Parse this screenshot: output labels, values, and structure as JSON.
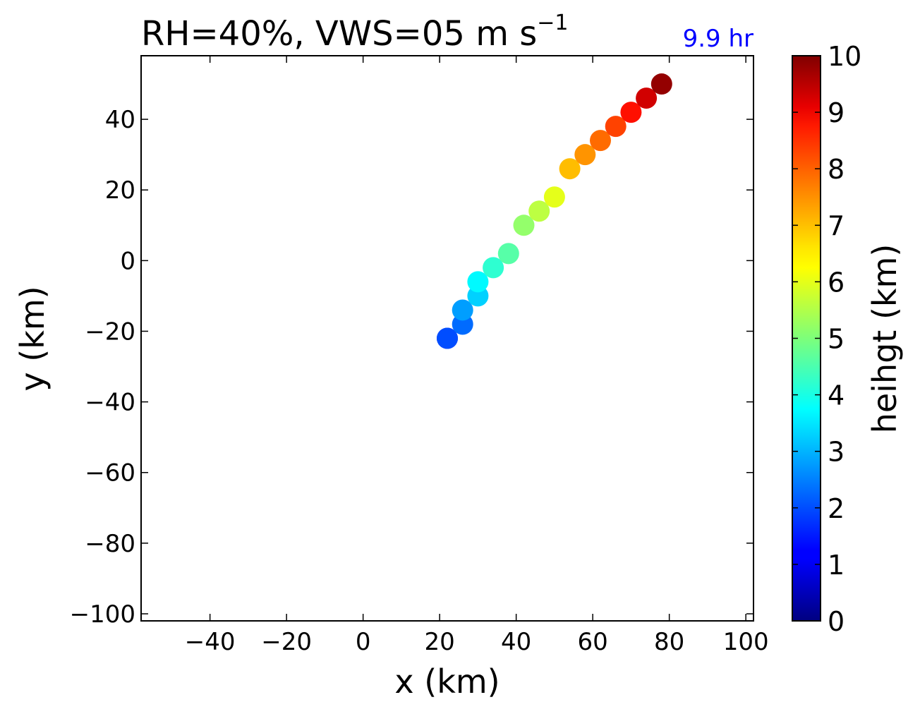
{
  "chart_data": {
    "type": "scatter",
    "title_main": "RH=40%, VWS=05 m s",
    "title_exp": "−1",
    "time_label": "9.9 hr",
    "time_label_color": "#0000ff",
    "xlabel": "x (km)",
    "ylabel": "y (km)",
    "xlim": [
      -58,
      102
    ],
    "ylim": [
      -102,
      58
    ],
    "xticks": [
      -40,
      -20,
      0,
      20,
      40,
      60,
      80,
      100
    ],
    "xtick_labels": [
      "−40",
      "−20",
      "0",
      "20",
      "40",
      "60",
      "80",
      "100"
    ],
    "yticks": [
      -100,
      -80,
      -60,
      -40,
      -20,
      0,
      20,
      40
    ],
    "ytick_labels": [
      "−100",
      "−80",
      "−60",
      "−40",
      "−20",
      "0",
      "20",
      "40"
    ],
    "colorbar": {
      "label": "heihgt (km)",
      "range": [
        0,
        10
      ],
      "ticks": [
        0,
        1,
        2,
        3,
        4,
        5,
        6,
        7,
        8,
        9,
        10
      ],
      "tick_labels": [
        "0",
        "1",
        "2",
        "3",
        "4",
        "5",
        "6",
        "7",
        "8",
        "9",
        "10"
      ],
      "colormap": "jet"
    },
    "points": [
      {
        "x": 22,
        "y": -22,
        "height": 1.5
      },
      {
        "x": 22,
        "y": -22,
        "height": 2.0
      },
      {
        "x": 26,
        "y": -18,
        "height": 2.3
      },
      {
        "x": 26,
        "y": -14,
        "height": 2.8
      },
      {
        "x": 30,
        "y": -10,
        "height": 3.3
      },
      {
        "x": 30,
        "y": -6,
        "height": 3.7
      },
      {
        "x": 34,
        "y": -2,
        "height": 4.2
      },
      {
        "x": 38,
        "y": 2,
        "height": 4.6
      },
      {
        "x": 42,
        "y": 10,
        "height": 5.2
      },
      {
        "x": 46,
        "y": 14,
        "height": 5.6
      },
      {
        "x": 50,
        "y": 18,
        "height": 6.0
      },
      {
        "x": 54,
        "y": 26,
        "height": 6.9
      },
      {
        "x": 58,
        "y": 30,
        "height": 7.3
      },
      {
        "x": 62,
        "y": 34,
        "height": 7.7
      },
      {
        "x": 66,
        "y": 38,
        "height": 8.1
      },
      {
        "x": 70,
        "y": 42,
        "height": 8.6
      },
      {
        "x": 74,
        "y": 46,
        "height": 9.2
      },
      {
        "x": 78,
        "y": 50,
        "height": 9.8
      }
    ]
  }
}
